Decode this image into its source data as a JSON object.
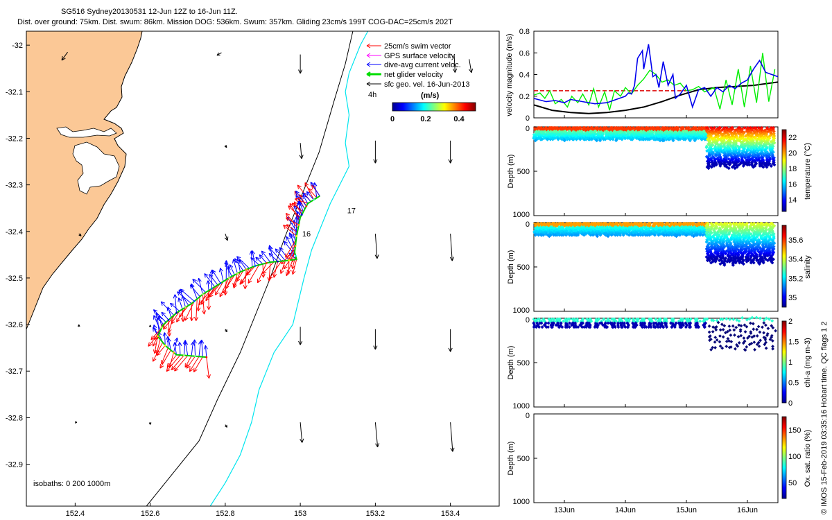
{
  "header": {
    "title": "SG516 Sydney20130531 12-Jun 12Z to 16-Jun 11Z.",
    "subtitle": "Dist. over ground: 75km. Dist. swum: 86km. Mission DOG: 536km. Swum: 357km. Gliding 23cm/s 199T COG-DAC=25cm/s 202T"
  },
  "colors": {
    "land": "#fbc896",
    "swim": "#ff0000",
    "gps": "#ff00ff",
    "dac": "#0000ff",
    "net": "#00dd00",
    "sfc": "#000000",
    "isobath_200": "#000000",
    "isobath_1000": "#00e5ee"
  },
  "chart_data": [
    {
      "type": "map",
      "name": "map",
      "xlim": [
        152.27,
        153.53
      ],
      "ylim": [
        -32.99,
        -31.97
      ],
      "xticks": [
        152.4,
        152.6,
        152.8,
        153,
        153.2,
        153.4
      ],
      "xtick_labels": [
        "152.4",
        "152.6",
        "152.8",
        "153",
        "153.2",
        "153.4"
      ],
      "yticks": [
        -32,
        -32.1,
        -32.2,
        -32.3,
        -32.4,
        -32.5,
        -32.6,
        -32.7,
        -32.8,
        -32.9
      ],
      "ytick_labels": [
        "-32",
        "-32.1",
        "-32.2",
        "-32.3",
        "-32.4",
        "-32.5",
        "-32.6",
        "-32.7",
        "-32.8",
        "-32.9"
      ],
      "legend": {
        "placement": "top-right",
        "entries": [
          "25cm/s swim vector",
          "GPS surface velocity",
          "dive-avg current veloc.",
          "net glider velocity",
          "sfc geo. vel. 16-Jun-2013"
        ],
        "hours_label": "4h"
      },
      "colorbar": {
        "label": "(m/s)",
        "ticks": [
          0,
          0.2,
          0.4
        ],
        "tick_labels": [
          "0",
          "0.2",
          "0.4"
        ],
        "range": [
          0,
          0.5
        ]
      },
      "day_labels": [
        {
          "text": "16",
          "lon": 153.005,
          "lat": -32.405
        },
        {
          "text": "17",
          "lon": 153.125,
          "lat": -32.355
        }
      ],
      "isobath_label": "isobaths: 0   200  1000m",
      "track": [
        [
          152.75,
          -32.67
        ],
        [
          152.72,
          -32.668
        ],
        [
          152.67,
          -32.665
        ],
        [
          152.64,
          -32.645
        ],
        [
          152.62,
          -32.625
        ],
        [
          152.635,
          -32.6
        ],
        [
          152.67,
          -32.575
        ],
        [
          152.71,
          -32.555
        ],
        [
          152.74,
          -32.535
        ],
        [
          152.78,
          -32.515
        ],
        [
          152.81,
          -32.5
        ],
        [
          152.84,
          -32.487
        ],
        [
          152.88,
          -32.474
        ],
        [
          152.92,
          -32.466
        ],
        [
          152.96,
          -32.463
        ],
        [
          152.99,
          -32.46
        ],
        [
          152.985,
          -32.445
        ],
        [
          152.99,
          -32.41
        ],
        [
          153.0,
          -32.37
        ],
        [
          153.02,
          -32.34
        ],
        [
          153.06,
          -32.32
        ]
      ],
      "sfc_geo_vel": [
        {
          "lon": 152.38,
          "lat": -32.015,
          "u": -0.013,
          "v": -0.018
        },
        {
          "lon": 152.79,
          "lat": -32.016,
          "u": -0.01,
          "v": -0.006
        },
        {
          "lon": 153.0,
          "lat": -32.02,
          "u": 0.0,
          "v": -0.042
        },
        {
          "lon": 153.41,
          "lat": -32.02,
          "u": 0.002,
          "v": -0.04
        },
        {
          "lon": 153.45,
          "lat": -32.03,
          "u": 0.005,
          "v": -0.03
        },
        {
          "lon": 152.8,
          "lat": -32.215,
          "u": 0.003,
          "v": -0.005
        },
        {
          "lon": 153.0,
          "lat": -32.21,
          "u": 0.003,
          "v": -0.035
        },
        {
          "lon": 153.2,
          "lat": -32.205,
          "u": 0.0,
          "v": -0.05
        },
        {
          "lon": 153.4,
          "lat": -32.205,
          "u": 0.0,
          "v": -0.05
        },
        {
          "lon": 152.41,
          "lat": -32.405,
          "u": 0.005,
          "v": -0.005
        },
        {
          "lon": 152.8,
          "lat": -32.405,
          "u": 0.005,
          "v": -0.015
        },
        {
          "lon": 153.2,
          "lat": -32.405,
          "u": 0.004,
          "v": -0.055
        },
        {
          "lon": 153.4,
          "lat": -32.405,
          "u": 0.004,
          "v": -0.06
        },
        {
          "lon": 152.41,
          "lat": -32.605,
          "u": 0.0,
          "v": 0.005
        },
        {
          "lon": 152.6,
          "lat": -32.605,
          "u": 0.0,
          "v": 0.004
        },
        {
          "lon": 152.8,
          "lat": -32.61,
          "u": 0.004,
          "v": -0.006
        },
        {
          "lon": 153.0,
          "lat": -32.605,
          "u": 0.0,
          "v": -0.04
        },
        {
          "lon": 153.2,
          "lat": -32.61,
          "u": 0.0,
          "v": -0.045
        },
        {
          "lon": 153.4,
          "lat": -32.61,
          "u": 0.0,
          "v": -0.05
        },
        {
          "lon": 152.4,
          "lat": -32.81,
          "u": 0.004,
          "v": 0.0
        },
        {
          "lon": 152.6,
          "lat": -32.81,
          "u": 0.0,
          "v": -0.005
        },
        {
          "lon": 152.8,
          "lat": -32.815,
          "u": 0.004,
          "v": -0.006
        },
        {
          "lon": 153.0,
          "lat": -32.81,
          "u": 0.004,
          "v": -0.045
        },
        {
          "lon": 153.2,
          "lat": -32.81,
          "u": 0.005,
          "v": -0.055
        },
        {
          "lon": 153.4,
          "lat": -32.81,
          "u": 0.005,
          "v": -0.065
        }
      ],
      "isobath_200": [
        [
          152.59,
          -32.99
        ],
        [
          152.65,
          -32.93
        ],
        [
          152.73,
          -32.85
        ],
        [
          152.78,
          -32.76
        ],
        [
          152.84,
          -32.66
        ],
        [
          152.88,
          -32.58
        ],
        [
          152.92,
          -32.5
        ],
        [
          152.96,
          -32.41
        ],
        [
          153.0,
          -32.33
        ],
        [
          153.05,
          -32.23
        ],
        [
          153.09,
          -32.12
        ],
        [
          153.12,
          -32.04
        ],
        [
          153.14,
          -31.97
        ]
      ],
      "isobath_1000": [
        [
          152.76,
          -32.99
        ],
        [
          152.8,
          -32.94
        ],
        [
          152.84,
          -32.88
        ],
        [
          152.87,
          -32.81
        ],
        [
          152.89,
          -32.74
        ],
        [
          152.93,
          -32.66
        ],
        [
          152.98,
          -32.6
        ],
        [
          153.01,
          -32.5
        ],
        [
          153.03,
          -32.44
        ],
        [
          153.08,
          -32.34
        ],
        [
          153.13,
          -32.26
        ],
        [
          153.12,
          -32.21
        ],
        [
          153.13,
          -32.15
        ],
        [
          153.12,
          -32.1
        ],
        [
          153.13,
          -32.06
        ],
        [
          153.16,
          -32.0
        ],
        [
          153.18,
          -31.97
        ]
      ]
    },
    {
      "type": "line",
      "name": "velocity",
      "ylabel": "velocity magnitude (m/s)",
      "xlim": [
        12.5,
        16.5
      ],
      "ylim": [
        0,
        0.8
      ],
      "yticks": [
        0,
        0.2,
        0.4,
        0.6,
        0.8
      ],
      "ytick_labels": [
        "0",
        "0.2",
        "0.4",
        "0.6",
        "0.8"
      ],
      "series": [
        {
          "style": "dashed",
          "color": "#dd0000",
          "x": [
            12.5,
            15.0
          ],
          "values": [
            0.25,
            0.25
          ]
        },
        {
          "color": "#000000",
          "x": [
            12.5,
            12.8,
            13.1,
            13.4,
            13.7,
            14.0,
            14.3,
            14.6,
            14.9,
            15.2,
            15.5,
            15.8,
            16.1,
            16.5
          ],
          "values": [
            0.12,
            0.07,
            0.05,
            0.04,
            0.05,
            0.07,
            0.1,
            0.15,
            0.21,
            0.26,
            0.28,
            0.29,
            0.3,
            0.33
          ]
        },
        {
          "color": "#00ee00",
          "x": [
            12.5,
            12.6,
            12.68,
            12.76,
            12.85,
            12.95,
            13.05,
            13.12,
            13.22,
            13.3,
            13.4,
            13.48,
            13.56,
            13.66,
            13.74,
            13.82,
            13.92,
            14.0,
            14.1,
            14.2,
            14.3,
            14.4,
            14.5,
            14.6,
            14.7,
            14.8,
            14.9,
            15.0,
            15.1,
            15.2,
            15.3,
            15.45,
            15.55,
            15.65,
            15.75,
            15.85,
            15.95,
            16.05,
            16.15,
            16.25,
            16.35,
            16.45
          ],
          "values": [
            0.21,
            0.23,
            0.18,
            0.25,
            0.13,
            0.17,
            0.1,
            0.2,
            0.14,
            0.22,
            0.12,
            0.27,
            0.1,
            0.24,
            0.07,
            0.25,
            0.2,
            0.28,
            0.22,
            0.3,
            0.36,
            0.44,
            0.4,
            0.33,
            0.35,
            0.3,
            0.32,
            0.25,
            0.26,
            0.29,
            0.24,
            0.28,
            0.08,
            0.35,
            0.12,
            0.45,
            0.1,
            0.48,
            0.14,
            0.6,
            0.15,
            0.45
          ]
        },
        {
          "color": "#0000ee",
          "x": [
            12.5,
            12.7,
            12.85,
            13.0,
            13.1,
            13.3,
            13.5,
            13.7,
            13.8,
            13.9,
            14.0,
            14.05,
            14.1,
            14.15,
            14.2,
            14.28,
            14.3,
            14.38,
            14.45,
            14.5,
            14.55,
            14.62,
            14.7,
            14.78,
            14.82,
            14.9,
            15.0,
            15.1,
            15.2,
            15.3,
            15.4,
            15.5,
            15.6,
            15.7,
            15.8,
            15.9,
            16.0,
            16.1,
            16.2,
            16.3,
            16.4,
            16.5
          ],
          "values": [
            0.18,
            0.15,
            0.16,
            0.14,
            0.17,
            0.15,
            0.13,
            0.14,
            0.16,
            0.18,
            0.2,
            0.23,
            0.22,
            0.3,
            0.55,
            0.62,
            0.45,
            0.68,
            0.38,
            0.4,
            0.28,
            0.52,
            0.3,
            0.4,
            0.18,
            0.22,
            0.3,
            0.1,
            0.26,
            0.28,
            0.2,
            0.28,
            0.24,
            0.3,
            0.27,
            0.32,
            0.35,
            0.45,
            0.53,
            0.42,
            0.4,
            0.38
          ]
        }
      ]
    },
    {
      "type": "scatter",
      "name": "temperature",
      "ylabel": "Depth (m)",
      "ylim": [
        0,
        1000
      ],
      "yticks": [
        0,
        500,
        1000
      ],
      "ytick_labels": [
        "0",
        "500",
        "1000"
      ],
      "colorbar": {
        "label": "temperature (°C)",
        "range": [
          12.5,
          23
        ],
        "ticks": [
          14,
          16,
          18,
          20,
          22
        ],
        "tick_labels": [
          "14",
          "16",
          "18",
          "20",
          "22"
        ]
      }
    },
    {
      "type": "scatter",
      "name": "salinity",
      "ylabel": "Depth (m)",
      "ylim": [
        0,
        1000
      ],
      "yticks": [
        0,
        500,
        1000
      ],
      "ytick_labels": [
        "0",
        "500",
        "1000"
      ],
      "colorbar": {
        "label": "salinity",
        "range": [
          34.9,
          35.75
        ],
        "ticks": [
          35,
          35.2,
          35.4,
          35.6
        ],
        "tick_labels": [
          "35",
          "35.2",
          "35.4",
          "35.6"
        ]
      }
    },
    {
      "type": "scatter",
      "name": "chla",
      "ylabel": "Depth (m)",
      "ylim": [
        0,
        1000
      ],
      "yticks": [
        0,
        500,
        1000
      ],
      "ytick_labels": [
        "0",
        "500",
        "1000"
      ],
      "colorbar": {
        "label": "chl-a (mg m-3)",
        "range": [
          0,
          2
        ],
        "ticks": [
          0,
          0.5,
          1,
          1.5,
          2
        ],
        "tick_labels": [
          "0",
          "0.5",
          "1",
          "1.5",
          "2"
        ]
      }
    },
    {
      "type": "scatter",
      "name": "oxygen",
      "ylabel": "Depth (m)",
      "ylim": [
        0,
        1000
      ],
      "yticks": [
        0,
        500,
        1000
      ],
      "ytick_labels": [
        "0",
        "500",
        "1000"
      ],
      "xlim": [
        12.5,
        16.5
      ],
      "xticks": [
        13,
        14,
        15,
        16
      ],
      "xtick_labels": [
        "13Jun",
        "14Jun",
        "15Jun",
        "16Jun"
      ],
      "colorbar": {
        "label": "Ox. sat. ratio (%)",
        "range": [
          20,
          175
        ],
        "ticks": [
          50,
          100,
          150
        ],
        "tick_labels": [
          "50",
          "100",
          "150"
        ]
      }
    }
  ],
  "footer": {
    "credit": "© IMOS 15-Feb-2019 03:35:16 Hobart time. QC flags 1  2"
  }
}
